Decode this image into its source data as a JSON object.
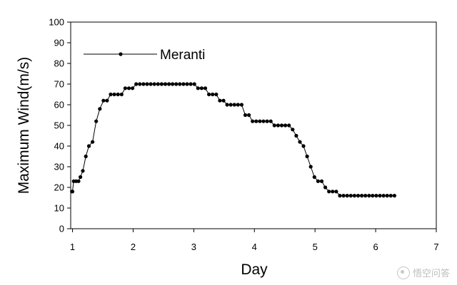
{
  "chart_data": {
    "type": "line",
    "xlabel": "Day",
    "ylabel": "Maximum  Wind(m/s)",
    "xlim": [
      0.97,
      7.0
    ],
    "ylim": [
      0,
      100
    ],
    "x_ticks": [
      {
        "value": 1,
        "label": "1"
      },
      {
        "value": 2,
        "label": "2"
      },
      {
        "value": 3,
        "label": "3"
      },
      {
        "value": 4,
        "label": "4"
      },
      {
        "value": 5,
        "label": "5"
      },
      {
        "value": 6,
        "label": "6"
      },
      {
        "value": 7,
        "label": "7"
      }
    ],
    "y_ticks": [
      0,
      10,
      20,
      30,
      40,
      50,
      60,
      70,
      80,
      90,
      100
    ],
    "grid": false,
    "legend_position": "top-left",
    "series": [
      {
        "name": "Meranti",
        "color": "#000000",
        "marker": "filled-circle",
        "points": [
          [
            0.99,
            18
          ],
          [
            1.0,
            18
          ],
          [
            1.02,
            23
          ],
          [
            1.06,
            23
          ],
          [
            1.1,
            23
          ],
          [
            1.13,
            25
          ],
          [
            1.17,
            28
          ],
          [
            1.22,
            35
          ],
          [
            1.27,
            40
          ],
          [
            1.33,
            42
          ],
          [
            1.39,
            52
          ],
          [
            1.45,
            58
          ],
          [
            1.51,
            62
          ],
          [
            1.57,
            62
          ],
          [
            1.63,
            65
          ],
          [
            1.69,
            65
          ],
          [
            1.75,
            65
          ],
          [
            1.81,
            65
          ],
          [
            1.87,
            68
          ],
          [
            1.93,
            68
          ],
          [
            1.99,
            68
          ],
          [
            2.05,
            70
          ],
          [
            2.11,
            70
          ],
          [
            2.17,
            70
          ],
          [
            2.23,
            70
          ],
          [
            2.29,
            70
          ],
          [
            2.35,
            70
          ],
          [
            2.41,
            70
          ],
          [
            2.47,
            70
          ],
          [
            2.53,
            70
          ],
          [
            2.59,
            70
          ],
          [
            2.65,
            70
          ],
          [
            2.71,
            70
          ],
          [
            2.77,
            70
          ],
          [
            2.83,
            70
          ],
          [
            2.89,
            70
          ],
          [
            2.95,
            70
          ],
          [
            3.01,
            70
          ],
          [
            3.07,
            68
          ],
          [
            3.13,
            68
          ],
          [
            3.19,
            68
          ],
          [
            3.25,
            65
          ],
          [
            3.31,
            65
          ],
          [
            3.37,
            65
          ],
          [
            3.43,
            62
          ],
          [
            3.49,
            62
          ],
          [
            3.55,
            60
          ],
          [
            3.61,
            60
          ],
          [
            3.67,
            60
          ],
          [
            3.73,
            60
          ],
          [
            3.79,
            60
          ],
          [
            3.85,
            55
          ],
          [
            3.91,
            55
          ],
          [
            3.97,
            52
          ],
          [
            4.03,
            52
          ],
          [
            4.09,
            52
          ],
          [
            4.15,
            52
          ],
          [
            4.21,
            52
          ],
          [
            4.27,
            52
          ],
          [
            4.33,
            50
          ],
          [
            4.39,
            50
          ],
          [
            4.45,
            50
          ],
          [
            4.51,
            50
          ],
          [
            4.57,
            50
          ],
          [
            4.63,
            48
          ],
          [
            4.69,
            45
          ],
          [
            4.75,
            42
          ],
          [
            4.81,
            40
          ],
          [
            4.87,
            35
          ],
          [
            4.93,
            30
          ],
          [
            4.99,
            25
          ],
          [
            5.05,
            23
          ],
          [
            5.11,
            23
          ],
          [
            5.17,
            20
          ],
          [
            5.23,
            18
          ],
          [
            5.29,
            18
          ],
          [
            5.35,
            18
          ],
          [
            5.41,
            16
          ],
          [
            5.47,
            16
          ],
          [
            5.53,
            16
          ],
          [
            5.59,
            16
          ],
          [
            5.65,
            16
          ],
          [
            5.71,
            16
          ],
          [
            5.77,
            16
          ],
          [
            5.83,
            16
          ],
          [
            5.89,
            16
          ],
          [
            5.95,
            16
          ],
          [
            6.01,
            16
          ],
          [
            6.07,
            16
          ],
          [
            6.13,
            16
          ],
          [
            6.19,
            16
          ],
          [
            6.25,
            16
          ],
          [
            6.31,
            16
          ]
        ]
      }
    ]
  },
  "watermark": {
    "text": "悟空问答"
  }
}
